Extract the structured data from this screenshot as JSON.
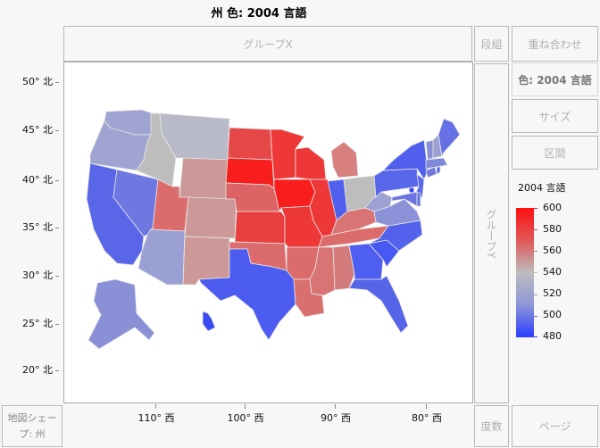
{
  "title": "州 色: 2004 言語",
  "zones": {
    "group_x": "グループX",
    "wrap": "段組",
    "overlay": "重ね合わせ",
    "color": "色: 2004 言語",
    "size": "サイズ",
    "interval": "区間",
    "group_y": "グループY",
    "map_shape": "地図シェープ: 州",
    "freq": "度数",
    "page": "ページ"
  },
  "chart_data": {
    "type": "choropleth",
    "title": "州 色: 2004 言語",
    "color_variable": "2004 言語",
    "legend": {
      "title": "2004 言語",
      "ticks": [
        600,
        580,
        560,
        540,
        520,
        500,
        480
      ],
      "colors": {
        "high": "#ff1010",
        "mid": "#bdbdbd",
        "low": "#2a3cff"
      },
      "range": [
        480,
        600
      ]
    },
    "y_axis": {
      "ticks": [
        "50° 北",
        "45° 北",
        "40° 北",
        "35° 北",
        "30° 北",
        "25° 北",
        "20° 北"
      ]
    },
    "x_axis": {
      "ticks": [
        "110° 西",
        "100° 西",
        "90° 西",
        "80° 西"
      ]
    },
    "states": [
      {
        "name": "WA",
        "approx_value": 527,
        "color": "#a0a4d0"
      },
      {
        "name": "OR",
        "approx_value": 527,
        "color": "#a0a4d0"
      },
      {
        "name": "CA",
        "approx_value": 500,
        "color": "#5a66e8"
      },
      {
        "name": "NV",
        "approx_value": 508,
        "color": "#6e78e0"
      },
      {
        "name": "ID",
        "approx_value": 540,
        "color": "#bdbdbd"
      },
      {
        "name": "MT",
        "approx_value": 537,
        "color": "#b8bac8"
      },
      {
        "name": "WY",
        "approx_value": 552,
        "color": "#cc9898"
      },
      {
        "name": "UT",
        "approx_value": 568,
        "color": "#dc6c6c"
      },
      {
        "name": "CO",
        "approx_value": 552,
        "color": "#cc9898"
      },
      {
        "name": "AZ",
        "approx_value": 522,
        "color": "#9aa0d4"
      },
      {
        "name": "NM",
        "approx_value": 553,
        "color": "#cc9898"
      },
      {
        "name": "ND",
        "approx_value": 582,
        "color": "#e64848"
      },
      {
        "name": "SD",
        "approx_value": 596,
        "color": "#f81e1e"
      },
      {
        "name": "NE",
        "approx_value": 572,
        "color": "#dc6464"
      },
      {
        "name": "KS",
        "approx_value": 584,
        "color": "#e84040"
      },
      {
        "name": "OK",
        "approx_value": 566,
        "color": "#dc6c6c"
      },
      {
        "name": "TX",
        "approx_value": 491,
        "color": "#4c5cf0"
      },
      {
        "name": "MN",
        "approx_value": 588,
        "color": "#ee3838"
      },
      {
        "name": "IA",
        "approx_value": 596,
        "color": "#f81e1e"
      },
      {
        "name": "MO",
        "approx_value": 588,
        "color": "#ee3838"
      },
      {
        "name": "AR",
        "approx_value": 566,
        "color": "#dc6c6c"
      },
      {
        "name": "LA",
        "approx_value": 562,
        "color": "#d87070"
      },
      {
        "name": "WI",
        "approx_value": 588,
        "color": "#ee3838"
      },
      {
        "name": "IL",
        "approx_value": 588,
        "color": "#ee3838"
      },
      {
        "name": "MI",
        "approx_value": 560,
        "color": "#d88080"
      },
      {
        "name": "IN",
        "approx_value": 500,
        "color": "#5060ec"
      },
      {
        "name": "OH",
        "approx_value": 538,
        "color": "#bdbdbd"
      },
      {
        "name": "KY",
        "approx_value": 563,
        "color": "#d87474"
      },
      {
        "name": "TN",
        "approx_value": 566,
        "color": "#dc6c6c"
      },
      {
        "name": "MS",
        "approx_value": 562,
        "color": "#d87474"
      },
      {
        "name": "AL",
        "approx_value": 560,
        "color": "#d47c7c"
      },
      {
        "name": "GA",
        "approx_value": 493,
        "color": "#4e5ef0"
      },
      {
        "name": "FL",
        "approx_value": 498,
        "color": "#5664e8"
      },
      {
        "name": "SC",
        "approx_value": 488,
        "color": "#4858f2"
      },
      {
        "name": "NC",
        "approx_value": 499,
        "color": "#5262ec"
      },
      {
        "name": "VA",
        "approx_value": 516,
        "color": "#8c92d8"
      },
      {
        "name": "WV",
        "approx_value": 520,
        "color": "#9ca0d2"
      },
      {
        "name": "PA",
        "approx_value": 500,
        "color": "#5866ea"
      },
      {
        "name": "NY",
        "approx_value": 497,
        "color": "#5060ec"
      },
      {
        "name": "NJ",
        "approx_value": 500,
        "color": "#5866ea"
      },
      {
        "name": "MD",
        "approx_value": 507,
        "color": "#6a74e0"
      },
      {
        "name": "DE",
        "approx_value": 505,
        "color": "#6a74e0"
      },
      {
        "name": "DC",
        "approx_value": 485,
        "color": "#3848f4"
      },
      {
        "name": "CT",
        "approx_value": 510,
        "color": "#7078de"
      },
      {
        "name": "RI",
        "approx_value": 500,
        "color": "#5866ea"
      },
      {
        "name": "MA",
        "approx_value": 515,
        "color": "#8088da"
      },
      {
        "name": "VT",
        "approx_value": 515,
        "color": "#8a90d6"
      },
      {
        "name": "NH",
        "approx_value": 520,
        "color": "#9ca0d2"
      },
      {
        "name": "ME",
        "approx_value": 505,
        "color": "#6470e4"
      },
      {
        "name": "AK",
        "approx_value": 515,
        "color": "#8a90d6"
      },
      {
        "name": "HI",
        "approx_value": 485,
        "color": "#3a4af2"
      }
    ]
  }
}
